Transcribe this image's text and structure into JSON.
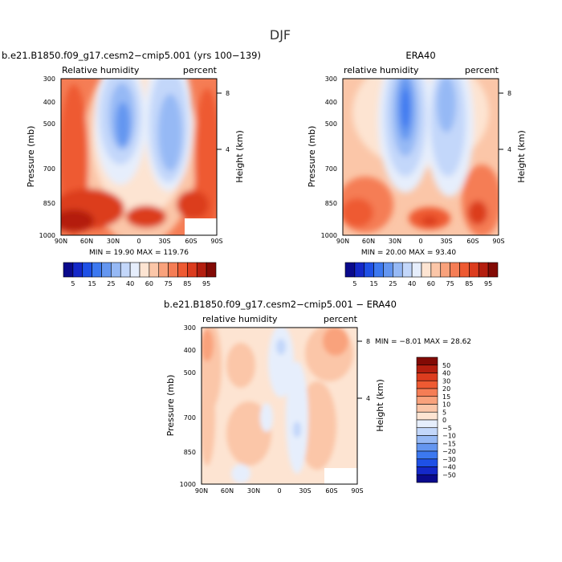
{
  "page_title": "DJF",
  "color_levels": {
    "abs_labels": [
      "5",
      "15",
      "25",
      "40",
      "60",
      "75",
      "85",
      "95"
    ],
    "abs_colors": [
      "#0a0a8c",
      "#1428c8",
      "#1e50e6",
      "#3c78f0",
      "#6496f0",
      "#96b9f5",
      "#c3d7fa",
      "#e6eefc",
      "#fde4d2",
      "#fbc6a8",
      "#f9a27c",
      "#f57d55",
      "#ee5a32",
      "#dc3c1e",
      "#b41e0f",
      "#820a05"
    ],
    "diff_labels": [
      "50",
      "40",
      "30",
      "20",
      "15",
      "10",
      "5",
      "0",
      "−5",
      "−10",
      "−15",
      "−20",
      "−30",
      "−40",
      "−50"
    ],
    "diff_colors": [
      "#820a05",
      "#b41e0f",
      "#dc3c1e",
      "#ee5a32",
      "#f57d55",
      "#f9a27c",
      "#fbc6a8",
      "#fde4d2",
      "#e6eefc",
      "#c3d7fa",
      "#96b9f5",
      "#6496f0",
      "#3c78f0",
      "#1e50e6",
      "#1428c8",
      "#0a0a8c"
    ]
  },
  "chart_data": [
    {
      "type": "heatmap",
      "id": "model",
      "title": "b.e21.B1850.f09_g17.cesm2−cmip5.001 (yrs 100−139)",
      "left_label": "Relative humidity",
      "right_label": "percent",
      "xlabel": "",
      "ylabel": "Pressure (mb)",
      "ylabel_right": "Height (km)",
      "x_ticks": [
        "90N",
        "60N",
        "30N",
        "0",
        "30S",
        "60S",
        "90S"
      ],
      "y_ticks": [
        "300",
        "400",
        "500",
        "700",
        "850",
        "1000"
      ],
      "y_ticks_right": [
        "8",
        "4"
      ],
      "min_label": "MIN = ",
      "min": "19.90",
      "max_label": "MAX = ",
      "max": "119.76",
      "x_range": [
        90,
        -90
      ],
      "y_range_mb": [
        300,
        1000
      ],
      "y_scale": "log",
      "contour_levels": [
        5,
        15,
        25,
        40,
        60,
        75,
        85,
        95
      ]
    },
    {
      "type": "heatmap",
      "id": "obs",
      "title": "ERA40",
      "left_label": "relative humidity",
      "right_label": "percent",
      "xlabel": "",
      "ylabel": "Pressure (mb)",
      "ylabel_right": "Height (km)",
      "x_ticks": [
        "90N",
        "60N",
        "30N",
        "0",
        "30S",
        "60S",
        "90S"
      ],
      "y_ticks": [
        "300",
        "400",
        "500",
        "700",
        "850",
        "1000"
      ],
      "y_ticks_right": [
        "8",
        "4"
      ],
      "min_label": "MIN = ",
      "min": "20.00",
      "max_label": "MAX = ",
      "max": "93.40",
      "x_range": [
        90,
        -90
      ],
      "y_range_mb": [
        300,
        1000
      ],
      "y_scale": "log",
      "contour_levels": [
        5,
        15,
        25,
        40,
        60,
        75,
        85,
        95
      ]
    },
    {
      "type": "heatmap",
      "id": "diff",
      "title": "b.e21.B1850.f09_g17.cesm2−cmip5.001 − ERA40",
      "left_label": "relative humidity",
      "right_label": "percent",
      "xlabel": "",
      "ylabel": "Pressure (mb)",
      "ylabel_right": "Height (km)",
      "x_ticks": [
        "90N",
        "60N",
        "30N",
        "0",
        "30S",
        "60S",
        "90S"
      ],
      "y_ticks": [
        "300",
        "400",
        "500",
        "700",
        "850",
        "1000"
      ],
      "y_ticks_right": [
        "8",
        "4"
      ],
      "min_label": "MIN = ",
      "min": "−8.01",
      "max_label": "MAX = ",
      "max": "28.62",
      "x_range": [
        90,
        -90
      ],
      "y_range_mb": [
        300,
        1000
      ],
      "y_scale": "log",
      "contour_levels": [
        -50,
        -40,
        -30,
        -20,
        -15,
        -10,
        -5,
        0,
        5,
        10,
        15,
        20,
        30,
        40,
        50
      ]
    }
  ]
}
